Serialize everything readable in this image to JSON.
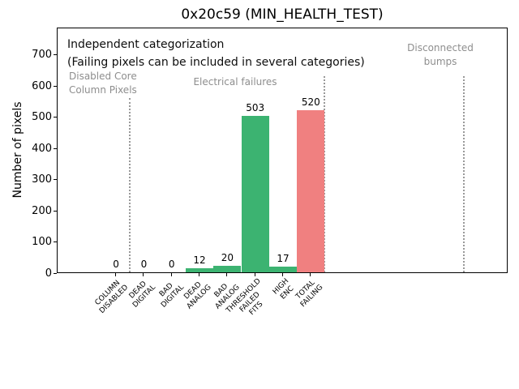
{
  "annotations": {
    "line1": "Independent categorization",
    "line2": "(Failing pixels can be included in several categories)",
    "sections": {
      "disabled": "Disabled Core\nColumn Pixels",
      "electrical": "Electrical failures",
      "disconnected": "Disconnected\nbumps"
    }
  },
  "chart_data": {
    "type": "bar",
    "title": "0x20c59 (MIN_HEALTH_TEST)",
    "xlabel": "",
    "ylabel": "Number of pixels",
    "ylim": [
      0,
      788
    ],
    "yticks": [
      0,
      100,
      200,
      300,
      400,
      500,
      600,
      700
    ],
    "xlim": [
      -2.1,
      14.1
    ],
    "grid": false,
    "legend": null,
    "categories": [
      "COLUMN\nDISABLED",
      "DEAD\nDIGITAL",
      "BAD\nDIGITAL",
      "DEAD\nANALOG",
      "BAD\nANALOG",
      "THRESHOLD\nFAILED\nFITS",
      "HIGH\nENC",
      "TOTAL\nFAILING"
    ],
    "values": [
      0,
      0,
      0,
      12,
      20,
      503,
      17,
      520
    ],
    "bar_labels": [
      "0",
      "0",
      "0",
      "12",
      "20",
      "503",
      "17",
      "520"
    ],
    "bar_colors": [
      "#3cb371",
      "#3cb371",
      "#3cb371",
      "#3cb371",
      "#3cb371",
      "#3cb371",
      "#3cb371",
      "#f08080"
    ],
    "separator_color": "#999999",
    "separators": [
      {
        "x": 0.5,
        "height_frac": 0.71
      },
      {
        "x": 7.5,
        "height_frac": 0.8
      },
      {
        "x": 12.5,
        "height_frac": 0.8
      }
    ]
  }
}
